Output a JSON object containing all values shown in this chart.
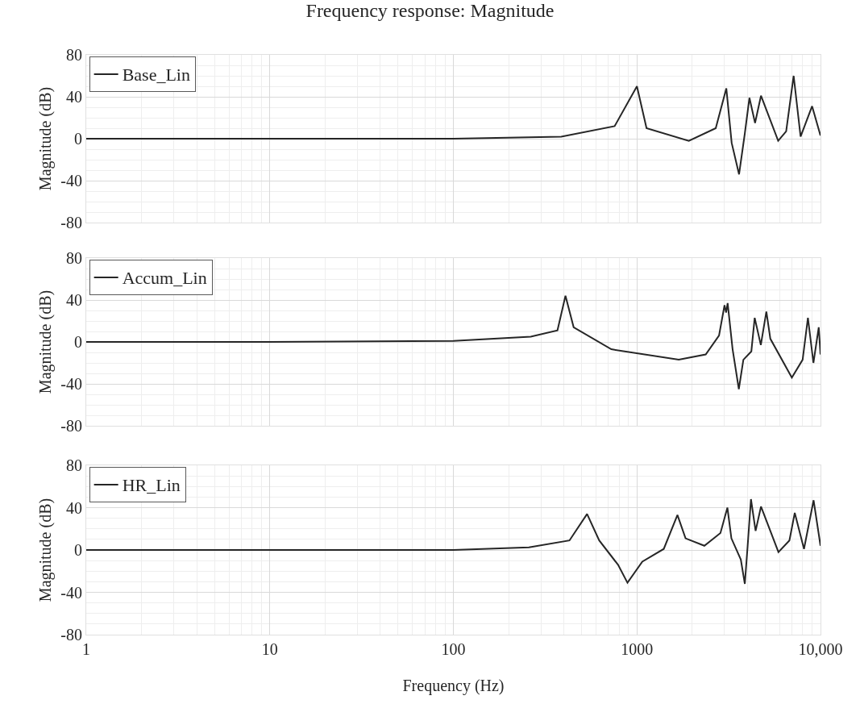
{
  "chart_data": [
    {
      "type": "line",
      "title": "Frequency response: Magnitude",
      "ylabel": "Magnitude (dB)",
      "log": "x",
      "grid": true,
      "legend": "top left",
      "tick_labels": "y",
      "line_style": "solid",
      "marker": "none",
      "xlim": [
        1,
        10000
      ],
      "ylim": [
        -80,
        80
      ],
      "yticks": [
        -80,
        -40,
        0,
        40,
        80
      ],
      "x": [
        1,
        10,
        100,
        387,
        756,
        1000,
        1128,
        1917,
        2687,
        3069,
        3281,
        3600,
        3870,
        4100,
        4400,
        4740,
        5880,
        6500,
        7140,
        7790,
        9000,
        10000
      ],
      "series": [
        {
          "name": "Base_Lin",
          "color": "#262626",
          "values": [
            0,
            0,
            0,
            2,
            12,
            50,
            10,
            -2,
            10,
            48,
            -4,
            -34,
            5,
            39,
            15,
            41,
            -2,
            7,
            60,
            2,
            31,
            3
          ]
        }
      ]
    },
    {
      "type": "line",
      "ylabel": "Magnitude (dB)",
      "log": "x",
      "grid": true,
      "legend": "top left",
      "tick_labels": "y",
      "line_style": "solid",
      "marker": "none",
      "xlim": [
        1,
        10000
      ],
      "ylim": [
        -80,
        80
      ],
      "yticks": [
        -80,
        -40,
        0,
        40,
        80
      ],
      "x": [
        1,
        10,
        100,
        264,
        369,
        408,
        452,
        725,
        1690,
        2370,
        2800,
        3000,
        3060,
        3120,
        3320,
        3590,
        3800,
        4200,
        4380,
        4730,
        5070,
        5330,
        6980,
        7990,
        8540,
        9150,
        9780,
        10000
      ],
      "series": [
        {
          "name": "Accum_Lin",
          "color": "#262626",
          "values": [
            0,
            0,
            1,
            5,
            11,
            44,
            14,
            -7,
            -17,
            -12,
            6,
            35,
            28,
            37,
            -7,
            -45,
            -17,
            -9,
            23,
            -3,
            29,
            3,
            -34,
            -17,
            23,
            -20,
            14,
            -12
          ]
        }
      ]
    },
    {
      "type": "line",
      "xlabel": "Frequency (Hz)",
      "ylabel": "Magnitude (dB)",
      "log": "x",
      "grid": true,
      "legend": "top left",
      "line_style": "solid",
      "marker": "none",
      "xlim": [
        1,
        10000
      ],
      "xticks": [
        1,
        10,
        100,
        1000,
        {
          "value": 10000,
          "label": "10,000"
        }
      ],
      "ylim": [
        -80,
        80
      ],
      "yticks": [
        -80,
        -40,
        0,
        40,
        80
      ],
      "x": [
        1,
        10,
        100,
        258,
        429,
        535,
        623,
        789,
        888,
        1070,
        1400,
        1662,
        1840,
        2330,
        2850,
        3110,
        3270,
        3680,
        3870,
        4010,
        4180,
        4430,
        4740,
        5900,
        6770,
        7240,
        8130,
        9170,
        10000
      ],
      "series": [
        {
          "name": "HR_Lin",
          "color": "#262626",
          "values": [
            0,
            0,
            0,
            2.5,
            9,
            34,
            9,
            -14,
            -31,
            -11,
            1,
            33,
            11,
            4,
            16,
            40,
            11,
            -9,
            -32,
            4,
            48,
            18,
            41,
            -2,
            9,
            35,
            1,
            47,
            4
          ]
        }
      ]
    }
  ]
}
